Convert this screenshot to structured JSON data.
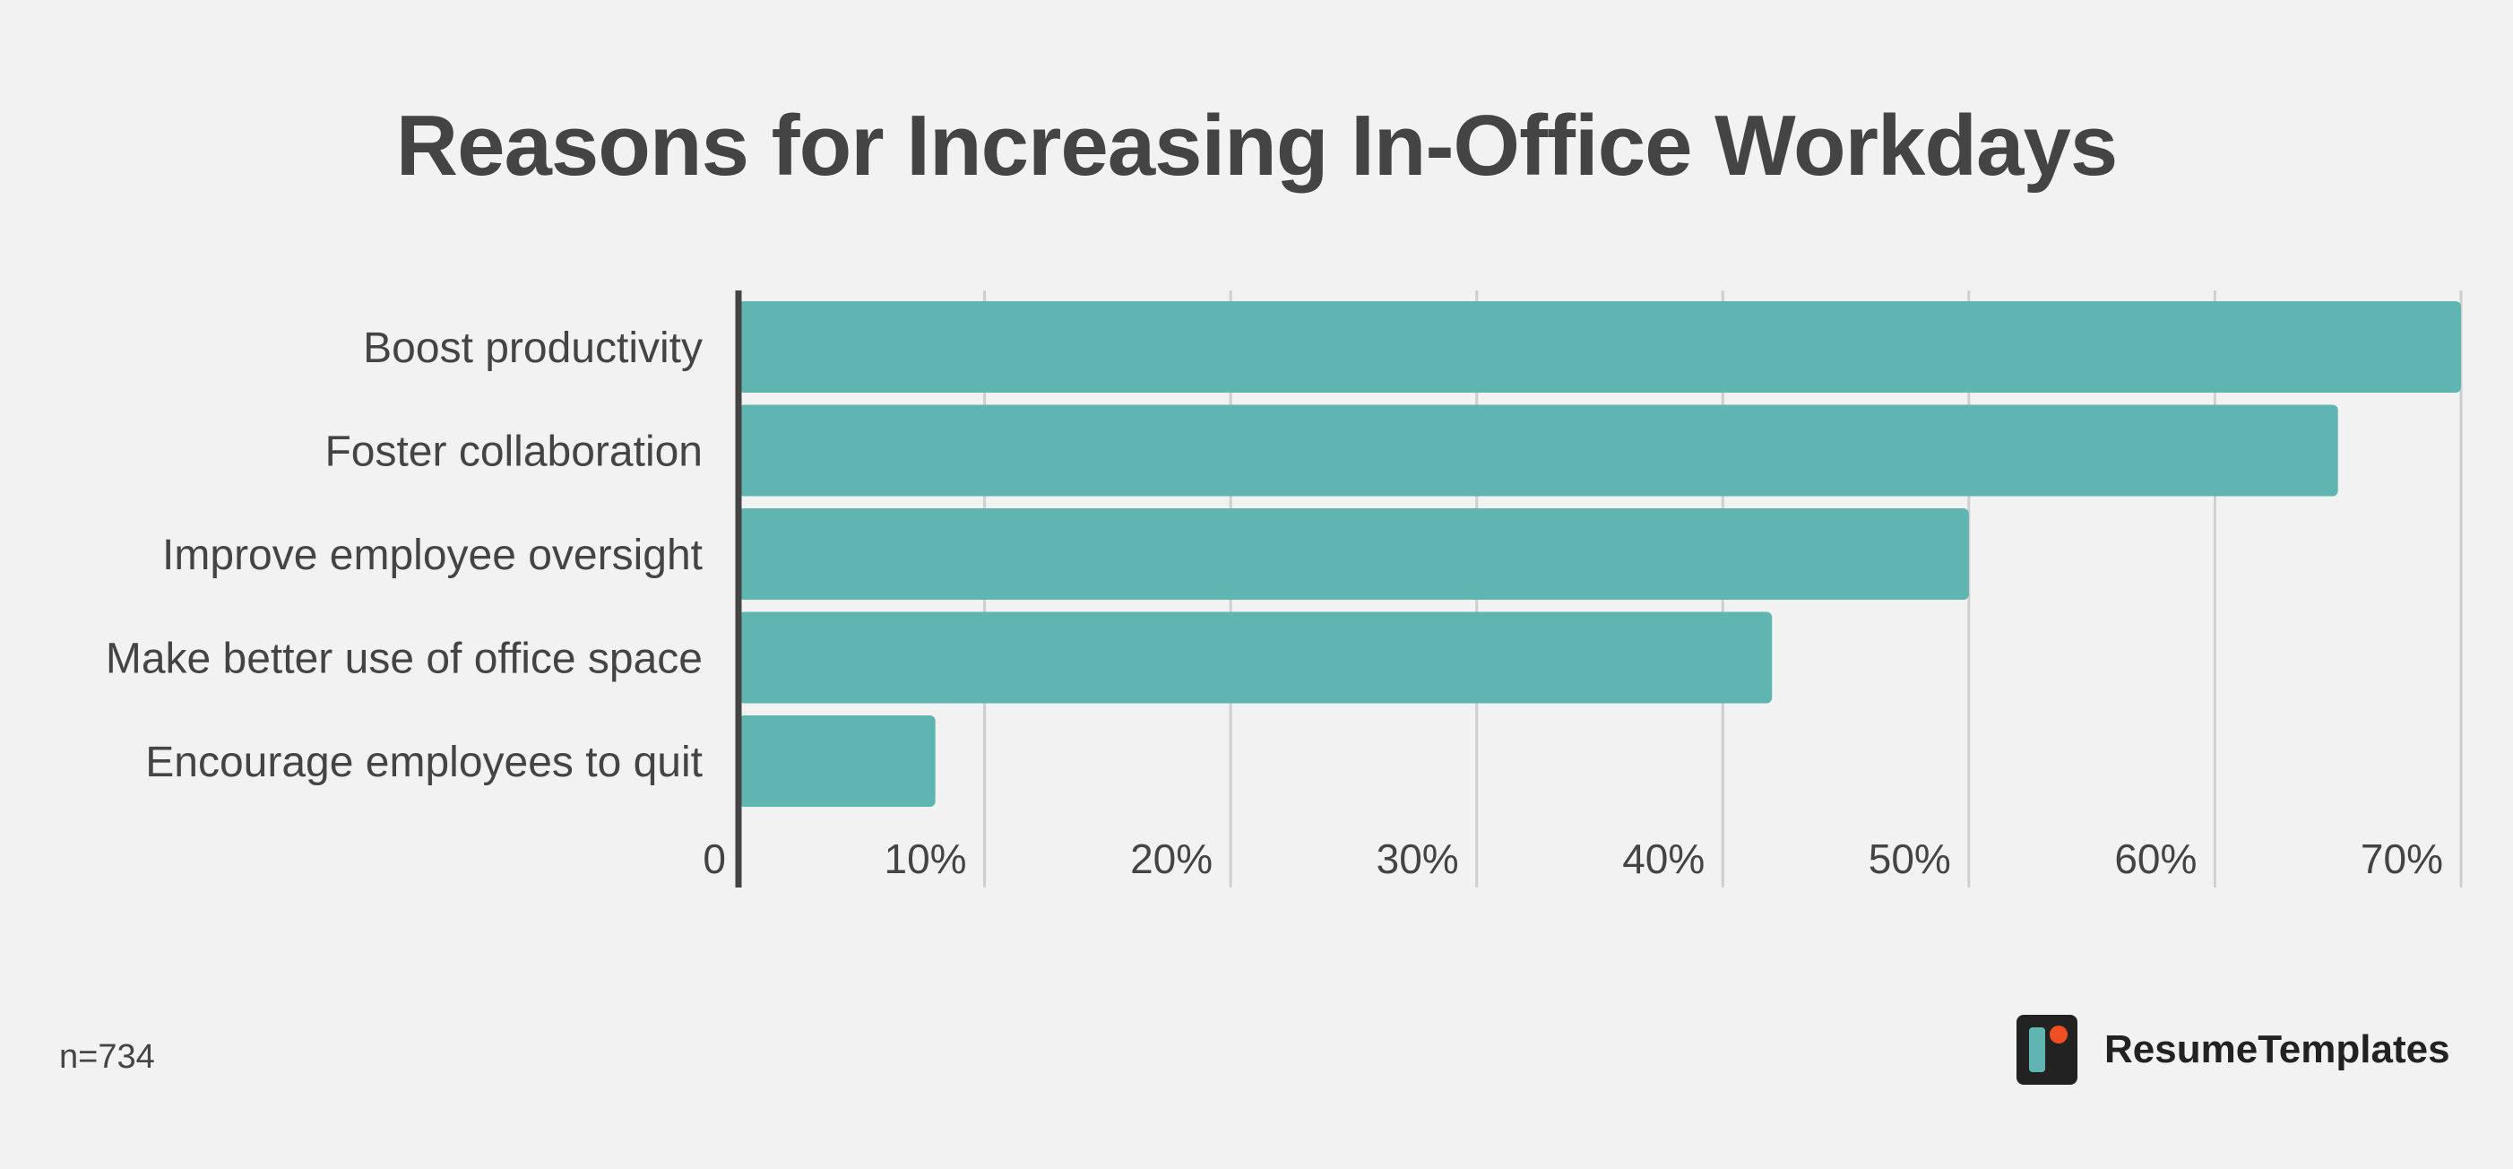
{
  "chart_data": {
    "type": "bar",
    "orientation": "horizontal",
    "title": "Reasons for Increasing In-Office Workdays",
    "xlabel": "",
    "ylabel": "",
    "categories": [
      "Boost productivity",
      "Foster collaboration",
      "Improve employee oversight",
      "Make better use of office space",
      "Encourage employees to quit"
    ],
    "values": [
      70,
      65,
      50,
      42,
      8
    ],
    "xlim": [
      0,
      70
    ],
    "xticks": [
      {
        "value": 0,
        "label": "0"
      },
      {
        "value": 10,
        "label": "10%"
      },
      {
        "value": 20,
        "label": "20%"
      },
      {
        "value": 30,
        "label": "30%"
      },
      {
        "value": 40,
        "label": "40%"
      },
      {
        "value": 50,
        "label": "50%"
      },
      {
        "value": 60,
        "label": "60%"
      },
      {
        "value": 70,
        "label": "70%"
      }
    ],
    "grid": "vertical",
    "bar_color": "#5fb6b0",
    "grid_color": "#cfcfcf",
    "axis_color": "#444444"
  },
  "footnote": "n=734",
  "brand": {
    "name": "ResumeTemplates",
    "logo_icon": "resumetemplates-logo-icon",
    "logo_bg": "#222222",
    "logo_accent": "#5fb6b0",
    "logo_dot": "#f04e23"
  }
}
